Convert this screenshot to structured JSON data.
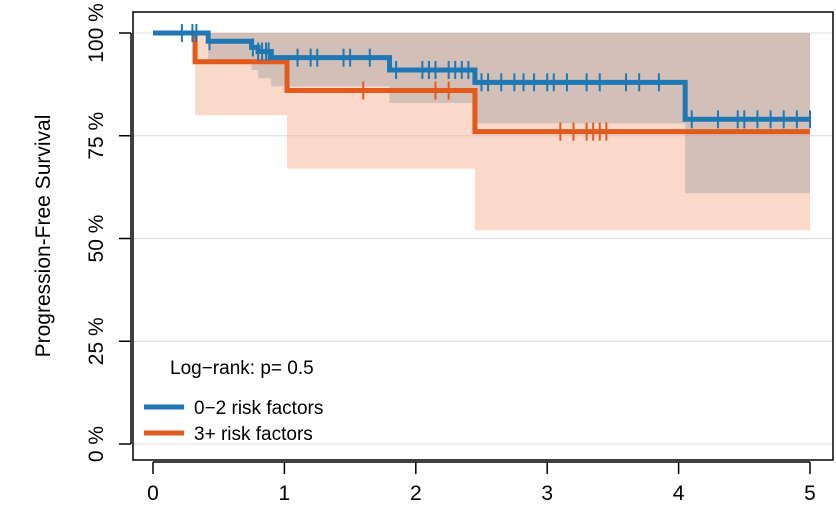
{
  "chart_data": {
    "type": "line",
    "subtype": "kaplan-meier",
    "title": "",
    "xlabel": "",
    "ylabel": "Progression-Free Survival",
    "xlim": [
      0,
      5
    ],
    "ylim": [
      0,
      1
    ],
    "x_ticks": [
      0,
      1,
      2,
      3,
      4,
      5
    ],
    "x_tick_labels": [
      "0",
      "1",
      "2",
      "3",
      "4",
      "5"
    ],
    "y_ticks": [
      0,
      0.25,
      0.5,
      0.75,
      1.0
    ],
    "y_tick_labels": [
      "0 %",
      "25 %",
      "50 %",
      "75 %",
      "100 %"
    ],
    "grid": true,
    "annotation": "Log−rank: p= 0.5",
    "legend": {
      "placement": "bottom-left",
      "entries": [
        "0−2 risk factors",
        "3+ risk factors"
      ]
    },
    "series": [
      {
        "name": "0−2 risk factors",
        "color": "#1f78b4",
        "band_color": "#9b9b9b",
        "steps": [
          [
            0,
            1.0
          ],
          [
            0.42,
            0.98
          ],
          [
            0.75,
            0.965
          ],
          [
            0.8,
            0.955
          ],
          [
            0.9,
            0.94
          ],
          [
            1.8,
            0.91
          ],
          [
            2.45,
            0.88
          ],
          [
            4.05,
            0.79
          ],
          [
            5.0,
            0.79
          ]
        ],
        "lower": [
          [
            0,
            1.0
          ],
          [
            0.42,
            0.93
          ],
          [
            0.75,
            0.91
          ],
          [
            0.8,
            0.89
          ],
          [
            0.9,
            0.87
          ],
          [
            1.8,
            0.83
          ],
          [
            2.45,
            0.78
          ],
          [
            4.05,
            0.61
          ],
          [
            5.0,
            0.61
          ]
        ],
        "upper": [
          [
            0,
            1.0
          ],
          [
            0.42,
            1.0
          ],
          [
            5.0,
            1.0
          ]
        ],
        "censored_x": [
          0.22,
          0.3,
          0.33,
          0.43,
          0.76,
          0.8,
          0.83,
          0.86,
          0.88,
          1.1,
          1.2,
          1.25,
          1.45,
          1.5,
          1.65,
          1.85,
          2.05,
          2.1,
          2.15,
          2.25,
          2.3,
          2.35,
          2.4,
          2.5,
          2.55,
          2.65,
          2.75,
          2.82,
          2.9,
          3.0,
          3.05,
          3.15,
          3.3,
          3.4,
          3.6,
          3.7,
          3.85,
          4.1,
          4.3,
          4.45,
          4.5,
          4.6,
          4.7,
          4.8,
          4.9,
          5.0
        ]
      },
      {
        "name": "3+ risk factors",
        "color": "#e25a1c",
        "band_color": "#f4a582",
        "steps": [
          [
            0,
            1.0
          ],
          [
            0.32,
            0.93
          ],
          [
            1.02,
            0.86
          ],
          [
            2.45,
            0.76
          ],
          [
            5.0,
            0.76
          ]
        ],
        "lower": [
          [
            0,
            1.0
          ],
          [
            0.32,
            0.8
          ],
          [
            1.02,
            0.67
          ],
          [
            2.45,
            0.52
          ],
          [
            5.0,
            0.52
          ]
        ],
        "upper": [
          [
            0,
            1.0
          ],
          [
            0.32,
            1.0
          ],
          [
            5.0,
            1.0
          ]
        ],
        "censored_x": [
          1.6,
          2.15,
          2.25,
          3.1,
          3.2,
          3.3,
          3.35,
          3.4,
          3.45
        ]
      }
    ]
  }
}
